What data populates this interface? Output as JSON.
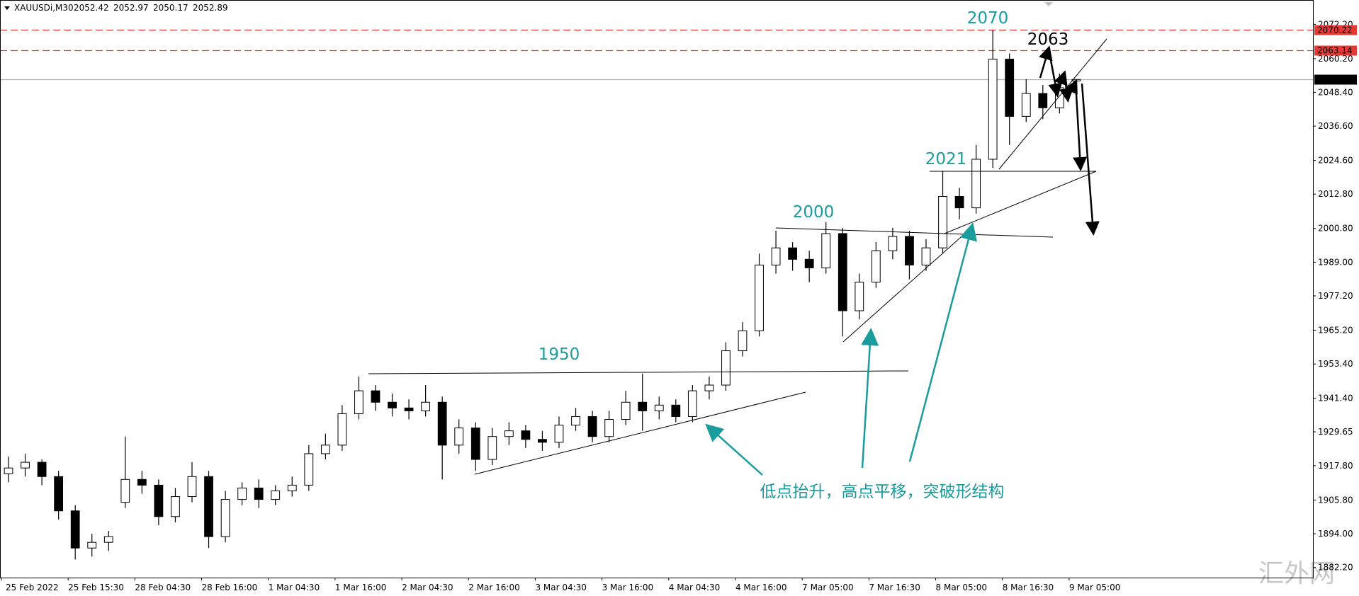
{
  "chart_data": {
    "type": "candlestick",
    "symbol": "XAUUSDi,M30",
    "ohlc": [
      2052.42,
      2052.97,
      2050.17,
      2052.89
    ],
    "categories": [
      "25 Feb 2022",
      null,
      null,
      null,
      "25 Feb 15:30",
      null,
      null,
      null,
      "28 Feb 04:30",
      null,
      null,
      null,
      "28 Feb 16:00",
      null,
      null,
      null,
      "1 Mar 04:30",
      null,
      null,
      null,
      "1 Mar 16:00",
      null,
      null,
      null,
      "2 Mar 04:30",
      null,
      null,
      null,
      "2 Mar 16:00",
      null,
      null,
      null,
      "3 Mar 04:30",
      null,
      null,
      null,
      "3 Mar 16:00",
      null,
      null,
      null,
      "4 Mar 04:30",
      null,
      null,
      null,
      "4 Mar 16:00",
      null,
      null,
      null,
      "7 Mar 05:00",
      null,
      null,
      null,
      "7 Mar 16:30",
      null,
      null,
      null,
      "8 Mar 05:00",
      null,
      null,
      null,
      "8 Mar 16:30",
      null,
      null,
      null,
      "9 Mar 05:00"
    ],
    "open": [
      1915,
      1917,
      1919,
      1914,
      1902,
      1889,
      1891,
      1905,
      1913,
      1911,
      1900,
      1907,
      1914,
      1893,
      1906,
      1910,
      1906,
      1909,
      1911,
      1922,
      1925,
      1936,
      1944,
      1940,
      1938,
      1937,
      1940,
      1925,
      1931,
      1920,
      1928,
      1930,
      1927,
      1926,
      1932,
      1935,
      1928,
      1934,
      1940,
      1937,
      1939,
      1935,
      1944,
      1946,
      1958,
      1965,
      1988,
      1994,
      1990,
      1987,
      1999,
      1972,
      1982,
      1993,
      1998,
      1988,
      1994,
      2012,
      2008,
      2025,
      2060,
      2040,
      2048,
      2043,
      2052.42
    ],
    "high": [
      1921,
      1922,
      1920,
      1916,
      1904,
      1894,
      1895,
      1928,
      1916,
      1913,
      1910,
      1919,
      1916,
      1909,
      1912,
      1913,
      1911,
      1914,
      1925,
      1929,
      1939,
      1949,
      1946,
      1943,
      1941,
      1946,
      1942,
      1934,
      1933,
      1931,
      1933,
      1932,
      1930,
      1935,
      1938,
      1937,
      1937,
      1944,
      1950,
      1942,
      1941,
      1946,
      1949,
      1961,
      1968,
      1992,
      2000,
      1996,
      1993,
      2003,
      2001,
      1985,
      1996,
      2001,
      2000,
      1997,
      2021,
      2015,
      2030,
      2070.22,
      2062,
      2053,
      2051,
      2055,
      2052.97
    ],
    "low": [
      1912,
      1914,
      1911,
      1899,
      1885,
      1886,
      1888,
      1903,
      1908,
      1897,
      1898,
      1905,
      1889,
      1891,
      1904,
      1903,
      1904,
      1907,
      1909,
      1920,
      1923,
      1934,
      1937,
      1935,
      1934,
      1935,
      1913,
      1922,
      1916,
      1918,
      1925,
      1924,
      1923,
      1924,
      1930,
      1926,
      1926,
      1932,
      1930,
      1934,
      1933,
      1933,
      1941,
      1944,
      1956,
      1963,
      1985,
      1986,
      1982,
      1985,
      1963,
      1969,
      1980,
      1990,
      1983,
      1986,
      1992,
      2004,
      2006,
      2022,
      2030,
      2038,
      2039,
      2041,
      2050.17
    ],
    "close": [
      1917,
      1919,
      1914,
      1902,
      1889,
      1891,
      1893,
      1913,
      1911,
      1900,
      1907,
      1914,
      1893,
      1906,
      1910,
      1906,
      1909,
      1911,
      1922,
      1925,
      1936,
      1944,
      1940,
      1938,
      1937,
      1940,
      1925,
      1931,
      1920,
      1928,
      1930,
      1927,
      1926,
      1932,
      1935,
      1928,
      1934,
      1940,
      1937,
      1939,
      1935,
      1944,
      1946,
      1958,
      1965,
      1988,
      1994,
      1990,
      1987,
      1999,
      1972,
      1982,
      1993,
      1998,
      1988,
      1994,
      2012,
      2008,
      2025,
      2060,
      2040,
      2048,
      2043,
      2050,
      2052.89
    ],
    "up_color": "#ffffff",
    "down_color": "#000000",
    "ylim": [
      1878.66,
      2080.7
    ],
    "yticks": [
      {
        "value": 1882.2,
        "label": "1882.20"
      },
      {
        "value": 1894,
        "label": "1894.00"
      },
      {
        "value": 1905.8,
        "label": "1905.80"
      },
      {
        "value": 1917.8,
        "label": "1917.80"
      },
      {
        "value": 1929.65,
        "label": "1929.65"
      },
      {
        "value": 1941.4,
        "label": "1941.40"
      },
      {
        "value": 1953.4,
        "label": "1953.40"
      },
      {
        "value": 1965.2,
        "label": "1965.20"
      },
      {
        "value": 1977.2,
        "label": "1977.20"
      },
      {
        "value": 1989,
        "label": "1989.00"
      },
      {
        "value": 2000.8,
        "label": "2000.80"
      },
      {
        "value": 2012.8,
        "label": "2012.80"
      },
      {
        "value": 2024.6,
        "label": "2024.60"
      },
      {
        "value": 2036.6,
        "label": "2036.60"
      },
      {
        "value": 2048.4,
        "label": "2048.40"
      },
      {
        "value": 2060.2,
        "label": "2060.20"
      },
      {
        "value": 2072.2,
        "label": "2072.20"
      }
    ],
    "levels": [
      {
        "value": 2070.22,
        "color": "#e53935",
        "dashed": true
      },
      {
        "value": 2063.14,
        "color": "#e53935",
        "dashed": true
      },
      {
        "value": 2052.89,
        "color": "#b0b0b0",
        "dashed": false,
        "box": "#000000"
      }
    ],
    "annotations": [
      {
        "text": "2070",
        "color": "#1a9c9c"
      },
      {
        "text": "2063",
        "color": "#000000"
      },
      {
        "text": "2021",
        "color": "#1a9c9c"
      },
      {
        "text": "2000",
        "color": "#1a9c9c"
      },
      {
        "text": "1950",
        "color": "#1a9c9c"
      },
      {
        "text": "低点抬升，高点平移，突破形结构",
        "color": "#1a9c9c"
      }
    ],
    "watermark": "汇外网"
  }
}
